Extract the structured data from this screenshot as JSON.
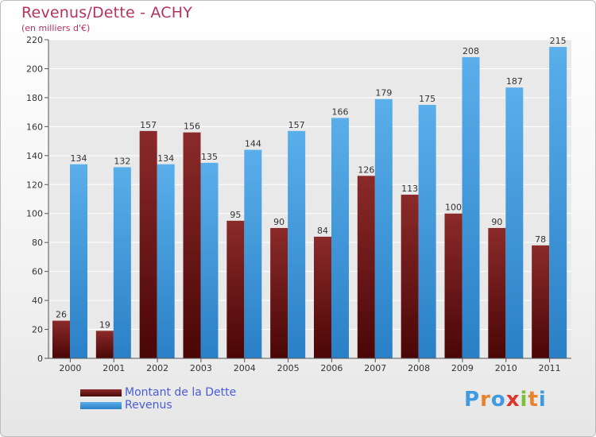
{
  "header": {
    "title": "Revenus/Dette - ACHY",
    "subtitle": "(en milliers d'€)"
  },
  "legend": {
    "items": [
      {
        "label": "Montant de la Dette",
        "color": "#7a1616"
      },
      {
        "label": "Revenus",
        "color": "#3f9be0"
      }
    ]
  },
  "logo": {
    "text": "Proxiti",
    "colors": [
      "#3f9be0",
      "#e8832c",
      "#3f9be0",
      "#d9372f",
      "#7bbf3a",
      "#e8832c",
      "#3f9be0"
    ]
  },
  "colors": {
    "debt_top": "#8b2a2a",
    "debt_bottom": "#4a0606",
    "rev_top": "#5aaeea",
    "rev_bottom": "#2a80c6",
    "title": "#b5325b",
    "axis_text": "#333333",
    "grid": "#ffffff"
  },
  "chart_data": {
    "type": "bar",
    "categories": [
      "2000",
      "2001",
      "2002",
      "2003",
      "2004",
      "2005",
      "2006",
      "2007",
      "2008",
      "2009",
      "2010",
      "2011"
    ],
    "series": [
      {
        "name": "Montant de la Dette",
        "values": [
          26,
          19,
          157,
          156,
          95,
          90,
          84,
          126,
          113,
          100,
          90,
          78
        ]
      },
      {
        "name": "Revenus",
        "values": [
          134,
          132,
          134,
          135,
          144,
          157,
          166,
          179,
          175,
          208,
          187,
          215
        ]
      }
    ],
    "title": "Revenus/Dette - ACHY",
    "subtitle": "(en milliers d'€)",
    "ylim": [
      0,
      220
    ],
    "yticks": [
      0,
      20,
      40,
      60,
      80,
      100,
      120,
      140,
      160,
      180,
      200,
      220
    ],
    "grid": true,
    "legend_position": "bottom-left"
  }
}
